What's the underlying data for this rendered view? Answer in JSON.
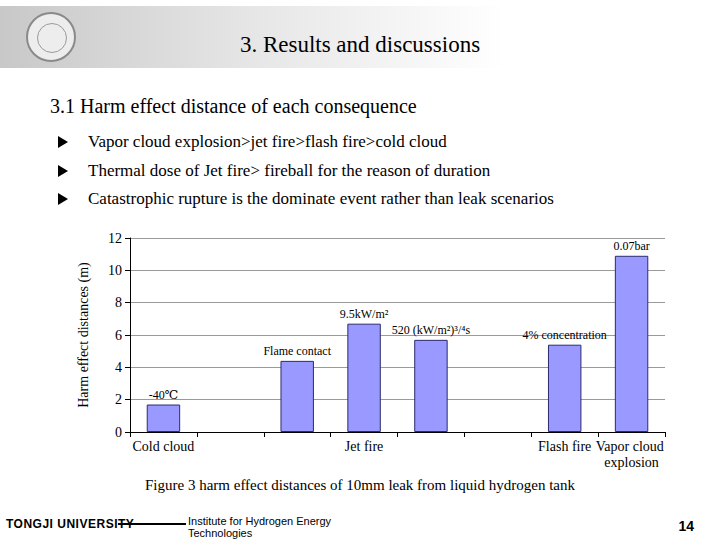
{
  "slide": {
    "title": "3. Results and discussions",
    "heading": "3.1 Harm effect distance of each consequence",
    "bullets": [
      "Vapor cloud explosion>jet fire>flash fire>cold cloud",
      "Thermal dose of Jet fire> fireball for the reason of duration",
      "Catastrophic rupture is the dominate event rather than leak scenarios"
    ],
    "caption": "Figure 3 harm effect distances of 10mm leak from liquid hydrogen tank",
    "footer": {
      "university": "TONGJI UNIVERSITY",
      "institute": [
        "Institute for Hydrogen Energy",
        "Technologies"
      ],
      "page": 14
    }
  },
  "chart_data": {
    "type": "bar",
    "ylabel": "Harm effect distances (m)",
    "categories": [
      "Cold cloud",
      null,
      null,
      "Jet fire",
      null,
      null,
      "Flash fire",
      "Vapor cloud explosion"
    ],
    "values": [
      1.7,
      null,
      4.4,
      6.7,
      5.7,
      null,
      5.4,
      10.9
    ],
    "annotations": [
      "-40℃",
      null,
      "Flame contact",
      "9.5kW/m²",
      "520 (kW/m²)³/⁴s",
      null,
      "4% concentration",
      "0.07bar"
    ],
    "color": "#9999ff",
    "ylim": [
      0,
      12
    ],
    "yticks": [
      0,
      2,
      4,
      6,
      8,
      10,
      12
    ],
    "grid": true
  }
}
